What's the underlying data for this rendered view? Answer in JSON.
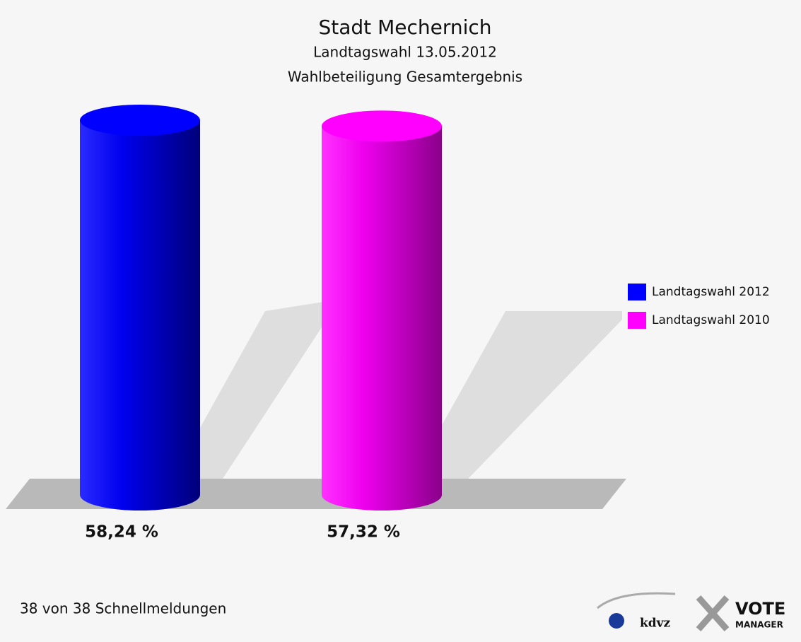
{
  "chart_data": {
    "type": "cylinder",
    "title": "Stadt Mechernich",
    "subtitle": [
      "Landtagswahl 13.05.2012",
      "Wahlbeteiligung Gesamtergebnis"
    ],
    "series": [
      {
        "name": "Landtagswahl 2012",
        "color": "#0000ff",
        "values": [
          58.24
        ],
        "value_labels": [
          "58,24 %"
        ]
      },
      {
        "name": "Landtagswahl 2010",
        "color": "#ff00ff",
        "values": [
          57.32
        ],
        "value_labels": [
          "57,32 %"
        ]
      }
    ],
    "legend": "right",
    "footnote": "38 von 38 Schnellmeldungen",
    "logo": {
      "left": "kdvz",
      "right": [
        "VOTE",
        "MANAGER"
      ]
    }
  }
}
